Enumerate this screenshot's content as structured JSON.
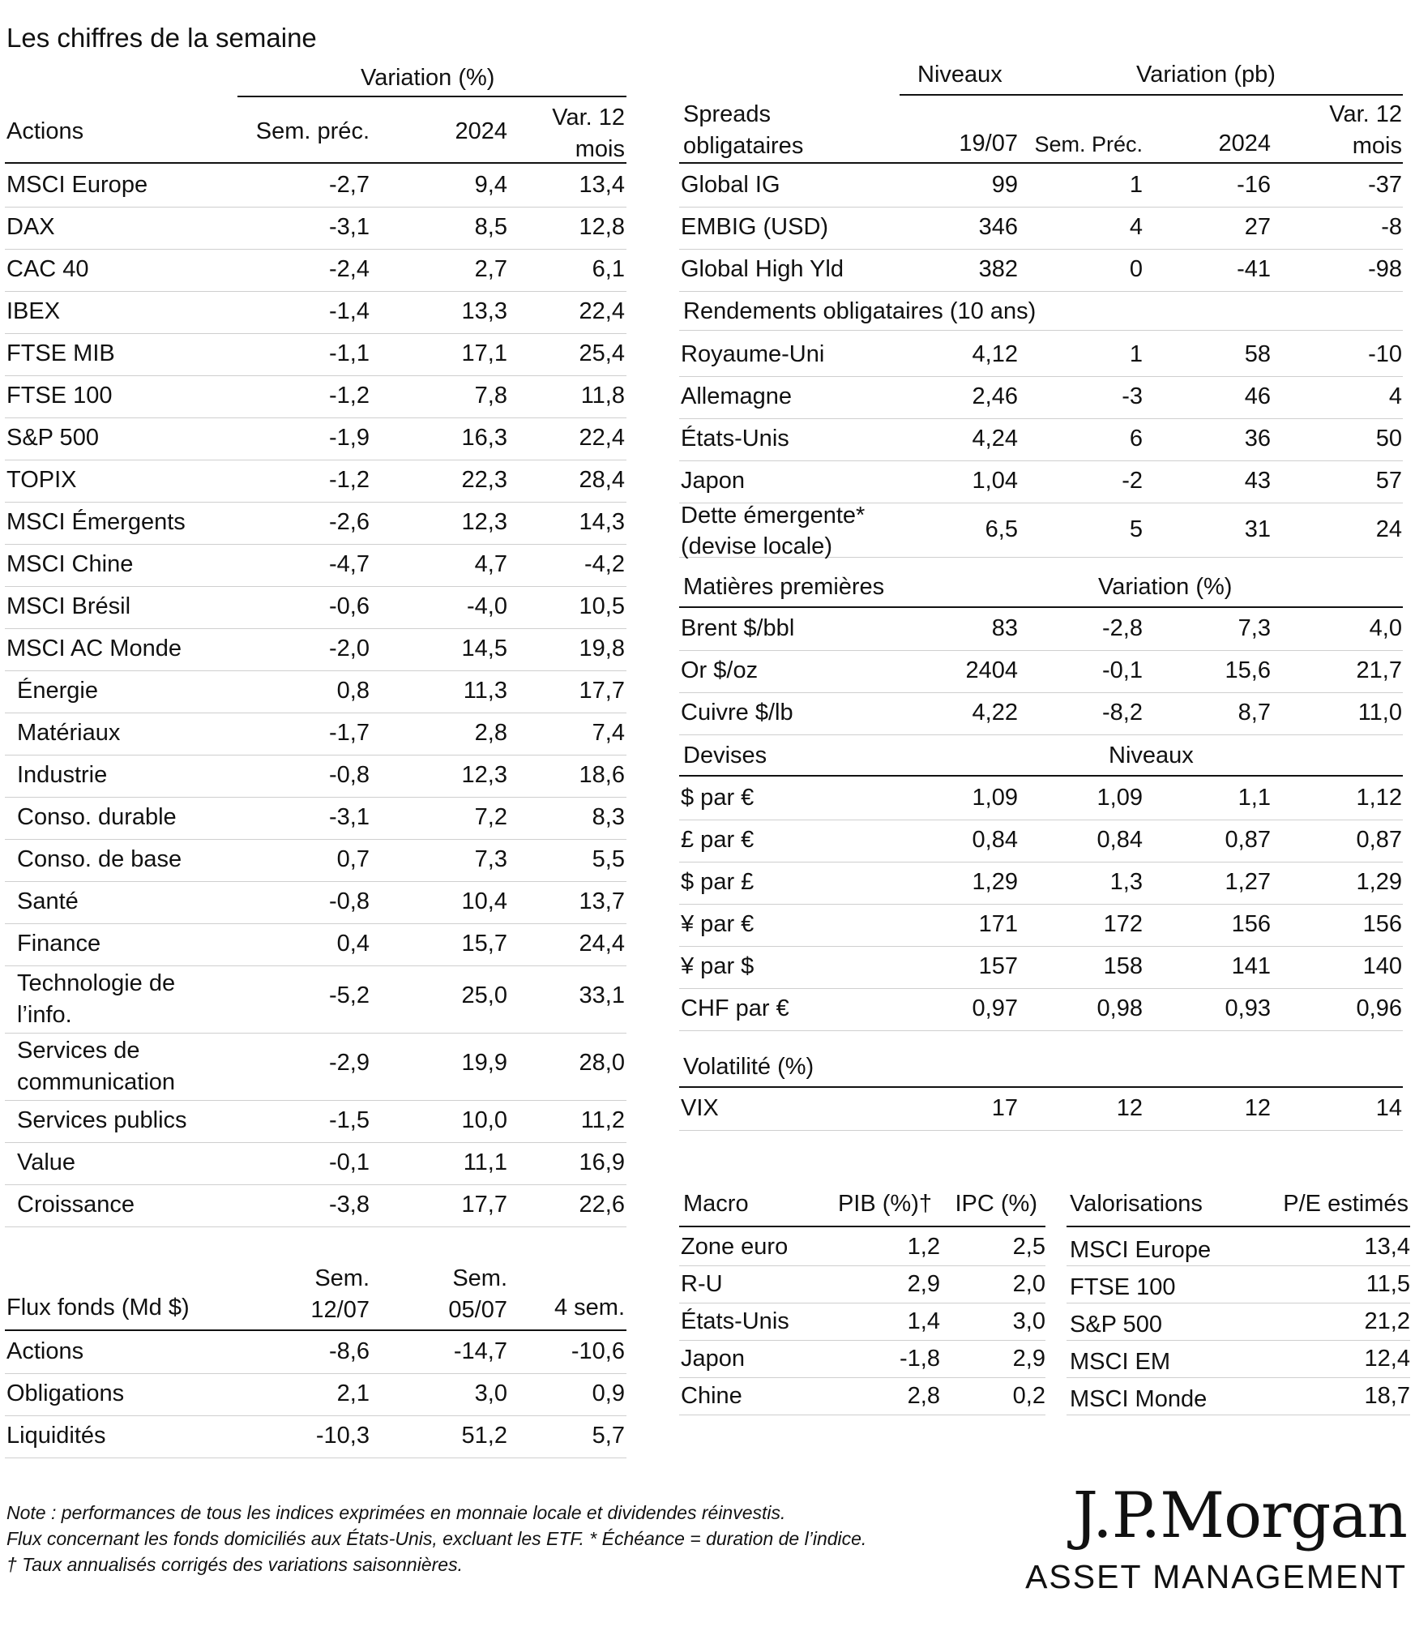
{
  "title": "Les chiffres de la semaine",
  "actions": {
    "super_header": "Variation (%)",
    "headers": [
      "Actions",
      "Sem. préc.",
      "2024",
      "Var. 12 mois"
    ],
    "rows": [
      [
        "MSCI Europe",
        "-2,7",
        "9,4",
        "13,4"
      ],
      [
        "DAX",
        "-3,1",
        "8,5",
        "12,8"
      ],
      [
        "CAC 40",
        "-2,4",
        "2,7",
        "6,1"
      ],
      [
        "IBEX",
        "-1,4",
        "13,3",
        "22,4"
      ],
      [
        "FTSE MIB",
        "-1,1",
        "17,1",
        "25,4"
      ],
      [
        "FTSE 100",
        "-1,2",
        "7,8",
        "11,8"
      ],
      [
        "S&P 500",
        "-1,9",
        "16,3",
        "22,4"
      ],
      [
        "TOPIX",
        "-1,2",
        "22,3",
        "28,4"
      ],
      [
        "MSCI Émergents",
        "-2,6",
        "12,3",
        "14,3"
      ],
      [
        "MSCI Chine",
        "-4,7",
        "4,7",
        "-4,2"
      ],
      [
        "MSCI Brésil",
        "-0,6",
        "-4,0",
        "10,5"
      ],
      [
        "MSCI AC Monde",
        "-2,0",
        "14,5",
        "19,8"
      ],
      [
        "Énergie",
        "0,8",
        "11,3",
        "17,7"
      ],
      [
        "Matériaux",
        "-1,7",
        "2,8",
        "7,4"
      ],
      [
        "Industrie",
        "-0,8",
        "12,3",
        "18,6"
      ],
      [
        "Conso. durable",
        "-3,1",
        "7,2",
        "8,3"
      ],
      [
        "Conso. de base",
        "0,7",
        "7,3",
        "5,5"
      ],
      [
        "Santé",
        "-0,8",
        "10,4",
        "13,7"
      ],
      [
        "Finance",
        "0,4",
        "15,7",
        "24,4"
      ],
      [
        "Technologie de l’info.",
        "-5,2",
        "25,0",
        "33,1"
      ],
      [
        "Services de communication",
        "-2,9",
        "19,9",
        "28,0"
      ],
      [
        "Services publics",
        "-1,5",
        "10,0",
        "11,2"
      ],
      [
        "Value",
        "-0,1",
        "11,1",
        "16,9"
      ],
      [
        "Croissance",
        "-3,8",
        "17,7",
        "22,6"
      ]
    ]
  },
  "flux": {
    "headers": [
      "Flux fonds (Md $)",
      "Sem. 12/07",
      "Sem. 05/07",
      "4 sem."
    ],
    "rows": [
      [
        "Actions",
        "-8,6",
        "-14,7",
        "-10,6"
      ],
      [
        "Obligations",
        "2,1",
        "3,0",
        "0,9"
      ],
      [
        "Liquidités",
        "-10,3",
        "51,2",
        "5,7"
      ]
    ]
  },
  "spreads": {
    "super_niveaux": "Niveaux",
    "super_variation": "Variation (pb)",
    "headers": [
      "Spreads obligataires",
      "19/07",
      "Sem. Préc.",
      "2024",
      "Var. 12 mois"
    ],
    "rows": [
      [
        "Global IG",
        "99",
        "1",
        "-16",
        "-37"
      ],
      [
        "EMBIG (USD)",
        "346",
        "4",
        "27",
        "-8"
      ],
      [
        "Global High Yld",
        "382",
        "0",
        "-41",
        "-98"
      ]
    ]
  },
  "rendements": {
    "header": "Rendements obligataires (10 ans)",
    "rows": [
      [
        "Royaume-Uni",
        "4,12",
        "1",
        "58",
        "-10"
      ],
      [
        "Allemagne",
        "2,46",
        "-3",
        "46",
        "4"
      ],
      [
        "États-Unis",
        "4,24",
        "6",
        "36",
        "50"
      ],
      [
        "Japon",
        "1,04",
        "-2",
        "43",
        "57"
      ],
      [
        "Dette émergente* (devise locale)",
        "6,5",
        "5",
        "31",
        "24"
      ]
    ]
  },
  "matieres": {
    "header": "Matières premières",
    "super": "Variation (%)",
    "rows": [
      [
        "Brent $/bbl",
        "83",
        "-2,8",
        "7,3",
        "4,0"
      ],
      [
        "Or $/oz",
        "2404",
        "-0,1",
        "15,6",
        "21,7"
      ],
      [
        "Cuivre $/lb",
        "4,22",
        "-8,2",
        "8,7",
        "11,0"
      ]
    ]
  },
  "devises": {
    "header": "Devises",
    "super": "Niveaux",
    "rows": [
      [
        "$ par €",
        "1,09",
        "1,09",
        "1,1",
        "1,12"
      ],
      [
        "£ par €",
        "0,84",
        "0,84",
        "0,87",
        "0,87"
      ],
      [
        "$ par £",
        "1,29",
        "1,3",
        "1,27",
        "1,29"
      ],
      [
        "¥ par €",
        "171",
        "172",
        "156",
        "156"
      ],
      [
        "¥ par $",
        "157",
        "158",
        "141",
        "140"
      ],
      [
        "CHF par €",
        "0,97",
        "0,98",
        "0,93",
        "0,96"
      ]
    ]
  },
  "volatilite": {
    "header": "Volatilité (%)",
    "rows": [
      [
        "VIX",
        "17",
        "12",
        "12",
        "14"
      ]
    ]
  },
  "macro": {
    "headers": [
      "Macro",
      "PIB (%)†",
      "IPC (%)"
    ],
    "rows": [
      [
        "Zone euro",
        "1,2",
        "2,5"
      ],
      [
        "R-U",
        "2,9",
        "2,0"
      ],
      [
        "États-Unis",
        "1,4",
        "3,0"
      ],
      [
        "Japon",
        "-1,8",
        "2,9"
      ],
      [
        "Chine",
        "2,8",
        "0,2"
      ]
    ]
  },
  "valorisations": {
    "headers": [
      "Valorisations",
      "P/E estimés"
    ],
    "rows": [
      [
        "MSCI Europe",
        "13,4"
      ],
      [
        "FTSE 100",
        "11,5"
      ],
      [
        "S&P 500",
        "21,2"
      ],
      [
        "MSCI EM",
        "12,4"
      ],
      [
        "MSCI Monde",
        "18,7"
      ]
    ]
  },
  "notes": [
    "Note : performances de tous les indices exprimées en monnaie locale et dividendes réinvestis.",
    "Flux concernant les fonds domiciliés aux États-Unis, excluant les ETF. * Échéance = duration de l’indice.",
    "† Taux annualisés corrigés des variations saisonnières."
  ],
  "logo": {
    "line1": "J.P.Morgan",
    "line2": "ASSET MANAGEMENT"
  }
}
